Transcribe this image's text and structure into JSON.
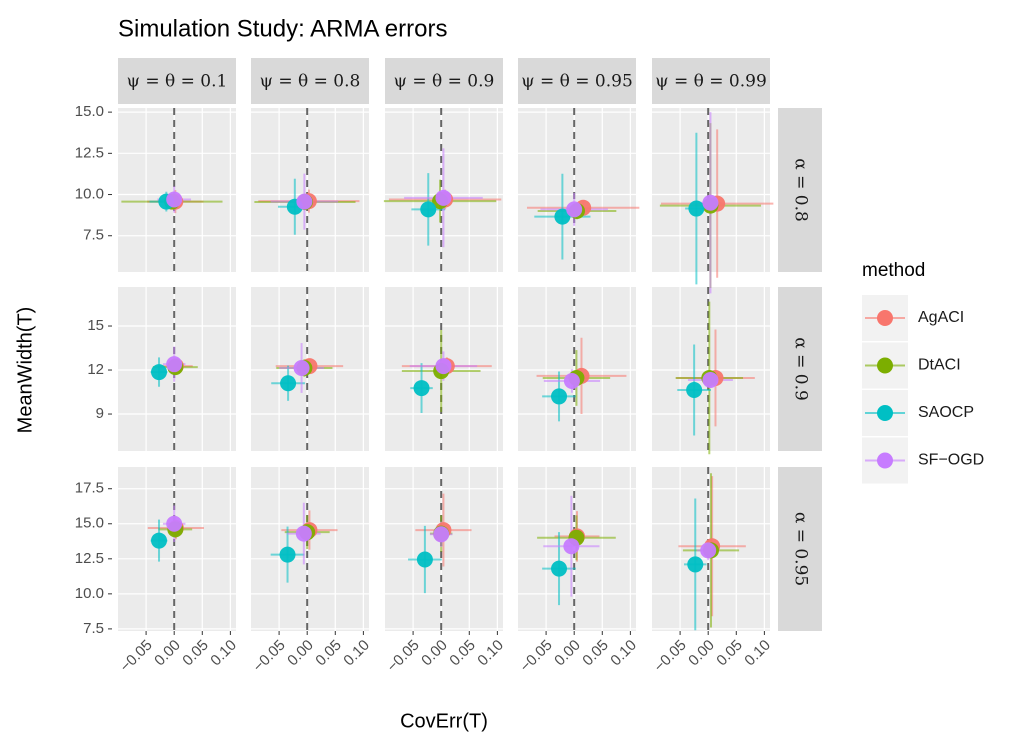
{
  "chart_data": {
    "type": "scatter",
    "title": "Simulation Study: ARMA errors",
    "x_label": "CovErr(T)",
    "y_label": "MeanWidth(T)",
    "legend_title": "method",
    "columns": [
      "ψ = θ = 0.1",
      "ψ = θ = 0.8",
      "ψ = θ = 0.9",
      "ψ = θ = 0.95",
      "ψ = θ = 0.99"
    ],
    "rows": [
      {
        "label": "α = 0.8",
        "ylim": [
          5.3,
          15.25
        ],
        "yticks": [
          7.5,
          {
            "value": 10,
            "label": "10.0"
          },
          12.5,
          {
            "value": 15,
            "label": "15.0"
          }
        ]
      },
      {
        "label": "α = 0.9",
        "ylim": [
          6.48,
          17.66
        ],
        "yticks": [
          9,
          12,
          15
        ]
      },
      {
        "label": "α = 0.95",
        "ylim": [
          7.35,
          19.05
        ],
        "yticks": [
          7.5,
          {
            "value": 10,
            "label": "10.0"
          },
          12.5,
          {
            "value": 15,
            "label": "15.0"
          },
          17.5
        ]
      }
    ],
    "xlim": [
      -0.1,
      0.11
    ],
    "xticks": [
      {
        "value": -0.05,
        "label": "−0.05"
      },
      {
        "value": 0,
        "label": "0.00"
      },
      {
        "value": 0.05,
        "label": "0.05"
      },
      {
        "value": 0.1,
        "label": "0.10"
      }
    ],
    "ref_x": 0,
    "grid": true,
    "series": [
      {
        "name": "AgACI",
        "color": "#F8766D",
        "x": [
          0.002,
          0.003,
          0.007,
          0.016,
          0.016,
          0.003,
          0.004,
          0.01,
          0.013,
          0.013,
          0.003,
          0.004,
          0.004,
          0.005,
          0.007
        ],
        "values": [
          9.57,
          9.6,
          9.7,
          9.2,
          9.45,
          12.27,
          12.27,
          12.27,
          11.6,
          11.46,
          14.7,
          14.55,
          14.55,
          14.1,
          13.4
        ],
        "x_err": [
          0.05,
          0.09,
          0.1,
          0.1,
          0.1,
          0.03,
          0.06,
          0.08,
          0.08,
          0.07,
          0.05,
          0.05,
          0.05,
          0.04,
          0.06
        ],
        "y_err": [
          0.7,
          0.7,
          0.6,
          0.4,
          4.5,
          0.4,
          0.5,
          0.6,
          2.6,
          3.3,
          0.8,
          1.4,
          2.6,
          1.8,
          5
        ]
      },
      {
        "name": "DtACI",
        "color": "#7CAE00",
        "x": [
          -0.004,
          -0.004,
          -0.002,
          0.005,
          0.004,
          0.002,
          -0.005,
          0,
          0.004,
          0.002,
          0.002,
          0,
          0,
          0.004,
          0.005
        ],
        "values": [
          9.57,
          9.55,
          9.6,
          9.0,
          9.33,
          12.2,
          12.14,
          11.93,
          11.46,
          11.46,
          14.6,
          14.4,
          14.3,
          14.0,
          13.1
        ],
        "x_err": [
          0.09,
          0.09,
          0.1,
          0.07,
          0.09,
          0.04,
          0.05,
          0.07,
          0.06,
          0.06,
          0.03,
          0.04,
          0.02,
          0.07,
          0.05
        ],
        "y_err": [
          0.4,
          0.5,
          1.3,
          0.5,
          5,
          0.5,
          0.6,
          2.8,
          1.9,
          5.2,
          0.6,
          1.2,
          1.3,
          1.6,
          5.5
        ]
      },
      {
        "name": "SAOCP",
        "color": "#00BFC4",
        "x": [
          -0.014,
          -0.022,
          -0.023,
          -0.021,
          -0.021,
          -0.027,
          -0.034,
          -0.035,
          -0.027,
          -0.025,
          -0.027,
          -0.035,
          -0.029,
          -0.027,
          -0.023
        ],
        "values": [
          9.57,
          9.26,
          9.1,
          8.66,
          9.15,
          11.86,
          11.1,
          10.77,
          10.2,
          10.64,
          13.8,
          12.8,
          12.45,
          11.8,
          12.1
        ],
        "x_err": [
          0.03,
          0.03,
          0.03,
          0.05,
          0.02,
          0.015,
          0.03,
          0.02,
          0.03,
          0.03,
          0.015,
          0.03,
          0.03,
          0.03,
          0.02
        ],
        "y_err": [
          0.6,
          1.7,
          2.2,
          2.6,
          4.6,
          1.0,
          1.2,
          1.7,
          1.7,
          3.1,
          1.5,
          2.0,
          2.4,
          2.6,
          4.7
        ]
      },
      {
        "name": "SF−OGD",
        "color": "#C77CFF",
        "x": [
          0,
          -0.005,
          0.004,
          0,
          0.004,
          0,
          -0.01,
          0.004,
          -0.004,
          0.004,
          0,
          -0.006,
          0,
          -0.005,
          0
        ],
        "values": [
          9.7,
          9.57,
          9.8,
          9.1,
          9.5,
          12.4,
          12.14,
          12.27,
          11.25,
          11.32,
          15.0,
          14.3,
          14.25,
          13.4,
          13.1
        ],
        "x_err": [
          0.03,
          0.06,
          0.07,
          0.06,
          0.02,
          0.02,
          0.04,
          0.06,
          0.05,
          0.04,
          0.02,
          0.03,
          0.02,
          0.05,
          0.02
        ],
        "y_err": [
          0.8,
          1.7,
          3.0,
          1.0,
          5.5,
          1.2,
          1.7,
          1.0,
          0.8,
          0.5,
          1.3,
          2.2,
          0.9,
          3.6,
          0.7
        ]
      }
    ]
  }
}
